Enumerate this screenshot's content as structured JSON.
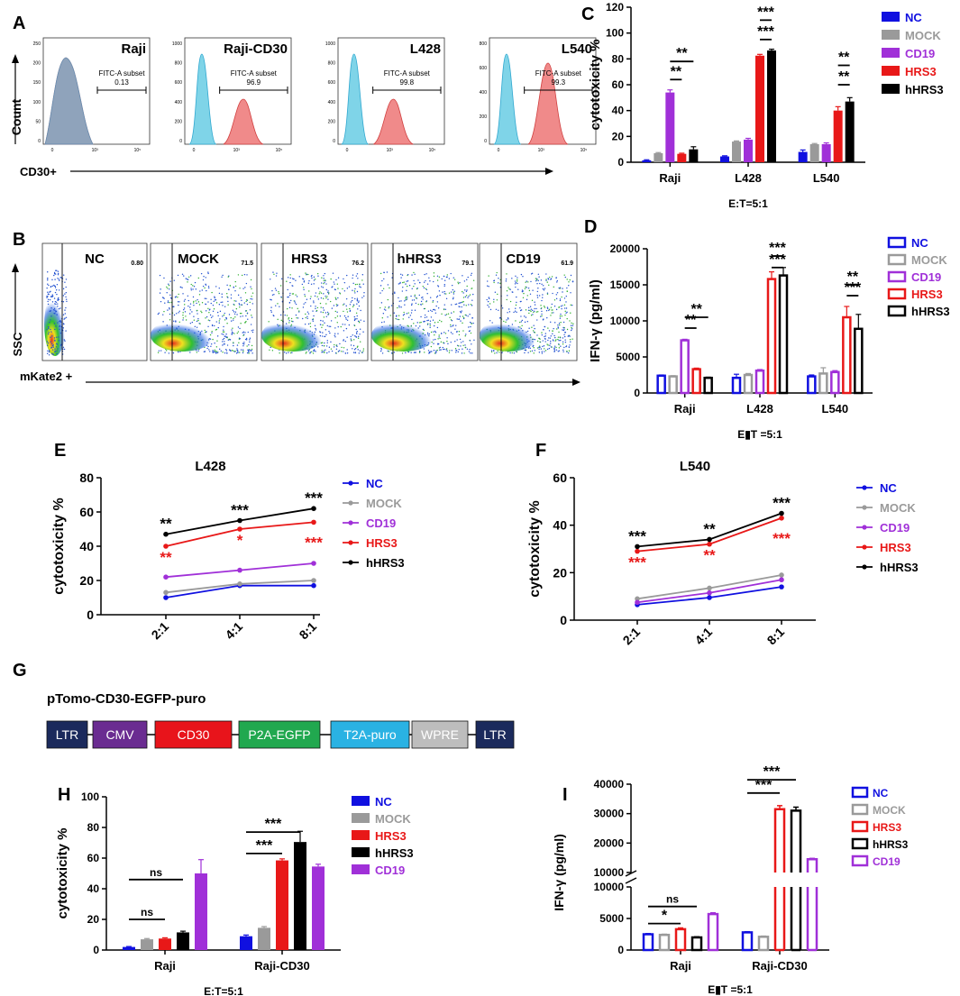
{
  "colors": {
    "NC": "#1010e0",
    "MOCK": "#9a9a9a",
    "CD19": "#a030d8",
    "HRS3": "#e81818",
    "hHRS3": "#000000",
    "flowBlue": "#7fd4e8",
    "flowRed": "#f08a8a",
    "pTomo": {
      "LTR": "#1b2a5c",
      "CMV": "#6a2c91",
      "CD30": "#e8141b",
      "P2A-EGFP": "#21a84f",
      "T2A-puro": "#2ab2e3",
      "WPRE": "#bdbdbd"
    }
  },
  "panelA": {
    "letter": "A",
    "ylabel": "Count",
    "xlabel": "CD30+",
    "subplots": [
      {
        "title": "Raji",
        "gate": "FITC-A subset",
        "value": "0.13",
        "yticks": [
          "250",
          "200",
          "150",
          "100",
          "50",
          "0"
        ]
      },
      {
        "title": "Raji-CD30",
        "gate": "FITC-A subset",
        "value": "96.9",
        "yticks": [
          "1000",
          "800",
          "600",
          "400",
          "200",
          "0"
        ]
      },
      {
        "title": "L428",
        "gate": "FITC-A subset",
        "value": "99.8",
        "yticks": [
          "1000",
          "800",
          "600",
          "400",
          "200",
          "0"
        ]
      },
      {
        "title": "L540",
        "gate": "FITC-A subset",
        "value": "99.3",
        "yticks": [
          "800",
          "600",
          "400",
          "200",
          "0"
        ]
      }
    ]
  },
  "panelB": {
    "letter": "B",
    "ylabel": "SSC",
    "xlabel": "mKate2 +",
    "subplots": [
      {
        "title": "NC",
        "value": "0.80"
      },
      {
        "title": "MOCK",
        "value": "71.5"
      },
      {
        "title": "HRS3",
        "value": "76.2"
      },
      {
        "title": "hHRS3",
        "value": "79.1"
      },
      {
        "title": "CD19",
        "value": "61.9"
      }
    ]
  },
  "panelG": {
    "letter": "G",
    "title": "pTomo-CD30-EGFP-puro",
    "segments": [
      {
        "label": "LTR",
        "color": "#1b2a5c"
      },
      {
        "label": "CMV",
        "color": "#6a2c91"
      },
      {
        "label": "CD30",
        "color": "#e8141b"
      },
      {
        "label": "P2A-EGFP",
        "color": "#21a84f"
      },
      {
        "label": "T2A-puro",
        "color": "#2ab2e3"
      },
      {
        "label": "WPRE",
        "color": "#bdbdbd"
      },
      {
        "label": "LTR",
        "color": "#1b2a5c"
      }
    ]
  },
  "chart_data": [
    {
      "id": "C",
      "type": "bar",
      "letter": "C",
      "ylabel": "cytotoxicity %",
      "xlabel": "E:T=5:1",
      "ylim": [
        0,
        120
      ],
      "yticks": [
        "0",
        "20",
        "40",
        "60",
        "80",
        "100",
        "120"
      ],
      "categories": [
        "Raji",
        "L428",
        "L540"
      ],
      "series": [
        {
          "name": "NC",
          "values": [
            1.5,
            4.5,
            8
          ],
          "errors": [
            0.4,
            0.5,
            1.5
          ]
        },
        {
          "name": "MOCK",
          "values": [
            7,
            16,
            14
          ],
          "errors": [
            0.5,
            0.5,
            0.5
          ]
        },
        {
          "name": "CD19",
          "values": [
            54,
            17.5,
            14
          ],
          "errors": [
            2,
            1,
            1
          ]
        },
        {
          "name": "HRS3",
          "values": [
            6.5,
            82.5,
            40
          ],
          "errors": [
            0.5,
            1,
            3
          ]
        },
        {
          "name": "hHRS3",
          "values": [
            10,
            86.5,
            47
          ],
          "errors": [
            2,
            1,
            3
          ]
        }
      ],
      "legend": [
        "NC",
        "MOCK",
        "CD19",
        "HRS3",
        "hHRS3"
      ],
      "annotations": [
        {
          "text": "**",
          "level": 64
        },
        {
          "text": "**",
          "level": 78
        },
        {
          "text": "***",
          "level": 110
        },
        {
          "text": "***",
          "level": 95
        },
        {
          "text": "**",
          "level": 75
        },
        {
          "text": "**",
          "level": 60
        }
      ]
    },
    {
      "id": "D",
      "type": "bar",
      "letter": "D",
      "ylabel": "IFN-γ (pg/ml)",
      "xlabel": "E▮T =5:1",
      "ylim": [
        0,
        20000
      ],
      "yticks": [
        "0",
        "5000",
        "10000",
        "15000",
        "20000"
      ],
      "categories": [
        "Raji",
        "L428",
        "L540"
      ],
      "series": [
        {
          "name": "NC",
          "values": [
            2400,
            2100,
            2300
          ],
          "errors": [
            100,
            500,
            200
          ]
        },
        {
          "name": "MOCK",
          "values": [
            2300,
            2500,
            2700
          ],
          "errors": [
            100,
            200,
            800
          ]
        },
        {
          "name": "CD19",
          "values": [
            7300,
            3100,
            2900
          ],
          "errors": [
            150,
            150,
            200
          ]
        },
        {
          "name": "HRS3",
          "values": [
            3300,
            15800,
            10500
          ],
          "errors": [
            150,
            1000,
            1500
          ]
        },
        {
          "name": "hHRS3",
          "values": [
            2100,
            16300,
            8900
          ],
          "errors": [
            100,
            1100,
            2000
          ]
        }
      ],
      "legend": [
        "NC",
        "MOCK",
        "CD19",
        "HRS3",
        "hHRS3"
      ],
      "annotations": [
        {
          "text": "**",
          "level": 9000
        },
        {
          "text": "**",
          "level": 10500
        },
        {
          "text": "***",
          "level": 19000
        },
        {
          "text": "***",
          "level": 17400
        },
        {
          "text": "***",
          "level": 13500
        },
        {
          "text": "**",
          "level": 15000
        }
      ]
    },
    {
      "id": "E",
      "type": "line",
      "letter": "E",
      "title": "L428",
      "ylabel": "cytotoxicity %",
      "ylim": [
        0,
        80
      ],
      "yticks": [
        "0",
        "20",
        "40",
        "60",
        "80"
      ],
      "x": [
        "2:1",
        "4:1",
        "8:1"
      ],
      "series": [
        {
          "name": "NC",
          "values": [
            10,
            17,
            17
          ]
        },
        {
          "name": "MOCK",
          "values": [
            13,
            18,
            20
          ]
        },
        {
          "name": "CD19",
          "values": [
            22,
            26,
            30
          ]
        },
        {
          "name": "HRS3",
          "values": [
            40,
            50,
            54
          ]
        },
        {
          "name": "hHRS3",
          "values": [
            47,
            55,
            62
          ]
        }
      ],
      "legend": [
        "NC",
        "MOCK",
        "CD19",
        "HRS3",
        "hHRS3"
      ],
      "top_stars": [
        "**",
        "***",
        "***"
      ],
      "bottom_stars": [
        "**",
        "*",
        "***"
      ]
    },
    {
      "id": "F",
      "type": "line",
      "letter": "F",
      "title": "L540",
      "ylabel": "cytotoxicity %",
      "ylim": [
        0,
        60
      ],
      "yticks": [
        "0",
        "20",
        "40",
        "60"
      ],
      "x": [
        "2:1",
        "4:1",
        "8:1"
      ],
      "series": [
        {
          "name": "NC",
          "values": [
            6.5,
            9.5,
            14
          ]
        },
        {
          "name": "MOCK",
          "values": [
            9,
            13.5,
            19
          ]
        },
        {
          "name": "CD19",
          "values": [
            7.5,
            11.5,
            17
          ]
        },
        {
          "name": "HRS3",
          "values": [
            29,
            32,
            43
          ]
        },
        {
          "name": "hHRS3",
          "values": [
            31,
            34,
            45
          ]
        }
      ],
      "legend": [
        "NC",
        "MOCK",
        "CD19",
        "HRS3",
        "hHRS3"
      ],
      "top_stars": [
        "***",
        "**",
        "***"
      ],
      "bottom_stars": [
        "***",
        "**",
        "***"
      ]
    },
    {
      "id": "H",
      "type": "bar",
      "letter": "H",
      "ylabel": "cytotoxicity %",
      "xlabel": "E:T=5:1",
      "ylim": [
        0,
        100
      ],
      "yticks": [
        "0",
        "20",
        "40",
        "60",
        "80",
        "100"
      ],
      "categories": [
        "Raji",
        "Raji-CD30"
      ],
      "series": [
        {
          "name": "NC",
          "values": [
            2,
            9
          ],
          "errors": [
            0.3,
            0.8
          ]
        },
        {
          "name": "MOCK",
          "values": [
            7,
            14.5
          ],
          "errors": [
            0.5,
            0.8
          ]
        },
        {
          "name": "HRS3",
          "values": [
            7.5,
            58.5
          ],
          "errors": [
            0.5,
            1
          ]
        },
        {
          "name": "hHRS3",
          "values": [
            11.5,
            70.5
          ],
          "errors": [
            0.8,
            7
          ]
        },
        {
          "name": "CD19",
          "values": [
            50,
            54.5
          ],
          "errors": [
            9,
            1.5
          ]
        }
      ],
      "legend": [
        "NC",
        "MOCK",
        "HRS3",
        "hHRS3",
        "CD19"
      ],
      "annotations": [
        {
          "text": "ns",
          "level": 20
        },
        {
          "text": "ns",
          "level": 46
        },
        {
          "text": "***",
          "level": 63
        },
        {
          "text": "***",
          "level": 77
        }
      ]
    },
    {
      "id": "I",
      "type": "bar",
      "letter": "I",
      "ylabel": "IFN-γ (pg/ml)",
      "xlabel": "E▮T =5:1",
      "yticks_lower": [
        "0",
        "5000",
        "10000"
      ],
      "yticks_upper": [
        "10000",
        "20000",
        "30000",
        "40000"
      ],
      "categories": [
        "Raji",
        "Raji-CD30"
      ],
      "series": [
        {
          "name": "NC",
          "values": [
            2500,
            2800
          ],
          "errors": [
            100,
            100
          ]
        },
        {
          "name": "MOCK",
          "values": [
            2400,
            2100
          ],
          "errors": [
            100,
            100
          ]
        },
        {
          "name": "HRS3",
          "values": [
            3300,
            31500
          ],
          "errors": [
            200,
            1200
          ]
        },
        {
          "name": "hHRS3",
          "values": [
            2000,
            31000
          ],
          "errors": [
            100,
            1200
          ]
        },
        {
          "name": "CD19",
          "values": [
            5700,
            14500
          ],
          "errors": [
            200,
            300
          ]
        }
      ],
      "legend": [
        "NC",
        "MOCK",
        "HRS3",
        "hHRS3",
        "CD19"
      ],
      "annotations": [
        {
          "text": "*",
          "level": 4200
        },
        {
          "text": "ns",
          "level": 6900
        },
        {
          "text": "***",
          "level": 37000
        },
        {
          "text": "***",
          "level": 41500
        }
      ]
    }
  ]
}
